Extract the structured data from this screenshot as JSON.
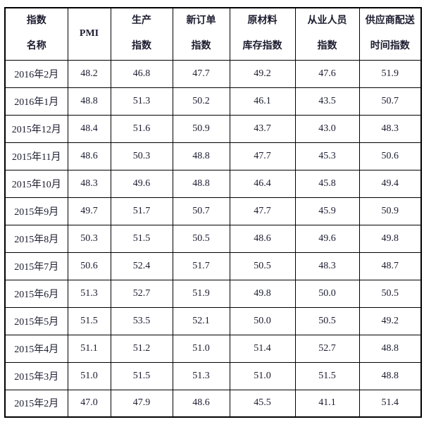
{
  "colors": {
    "background": "#ffffff",
    "border": "#000000",
    "text": "#1c1c30"
  },
  "table": {
    "columns": [
      {
        "id": "index-name",
        "label_lines": [
          "指数",
          "名称"
        ]
      },
      {
        "id": "pmi",
        "label_lines": [
          "PMI"
        ]
      },
      {
        "id": "production",
        "label_lines": [
          "生产",
          "指数"
        ]
      },
      {
        "id": "new-orders",
        "label_lines": [
          "新订单",
          "指数"
        ]
      },
      {
        "id": "raw-materials",
        "label_lines": [
          "原材料",
          "库存指数"
        ]
      },
      {
        "id": "employment",
        "label_lines": [
          "从业人员",
          "指数"
        ]
      },
      {
        "id": "supplier-delivery",
        "label_lines": [
          "供应商配送",
          "时间指数"
        ]
      }
    ],
    "rows": [
      {
        "month": "2016年2月",
        "values": [
          "48.2",
          "46.8",
          "47.7",
          "49.2",
          "47.6",
          "51.9"
        ]
      },
      {
        "month": "2016年1月",
        "values": [
          "48.8",
          "51.3",
          "50.2",
          "46.1",
          "43.5",
          "50.7"
        ]
      },
      {
        "month": "2015年12月",
        "values": [
          "48.4",
          "51.6",
          "50.9",
          "43.7",
          "43.0",
          "48.3"
        ]
      },
      {
        "month": "2015年11月",
        "values": [
          "48.6",
          "50.3",
          "48.8",
          "47.7",
          "45.3",
          "50.6"
        ]
      },
      {
        "month": "2015年10月",
        "values": [
          "48.3",
          "49.6",
          "48.8",
          "46.4",
          "45.8",
          "49.4"
        ]
      },
      {
        "month": "2015年9月",
        "values": [
          "49.7",
          "51.7",
          "50.7",
          "47.7",
          "45.9",
          "50.9"
        ]
      },
      {
        "month": "2015年8月",
        "values": [
          "50.3",
          "51.5",
          "50.5",
          "48.6",
          "49.6",
          "49.8"
        ]
      },
      {
        "month": "2015年7月",
        "values": [
          "50.6",
          "52.4",
          "51.7",
          "50.5",
          "48.3",
          "48.7"
        ]
      },
      {
        "month": "2015年6月",
        "values": [
          "51.3",
          "52.7",
          "51.9",
          "49.8",
          "50.0",
          "50.5"
        ]
      },
      {
        "month": "2015年5月",
        "values": [
          "51.5",
          "53.5",
          "52.1",
          "50.0",
          "50.5",
          "49.2"
        ]
      },
      {
        "month": "2015年4月",
        "values": [
          "51.1",
          "51.2",
          "51.0",
          "51.4",
          "52.7",
          "48.8"
        ]
      },
      {
        "month": "2015年3月",
        "values": [
          "51.0",
          "51.5",
          "51.3",
          "51.0",
          "51.5",
          "48.8"
        ]
      },
      {
        "month": "2015年2月",
        "values": [
          "47.0",
          "47.9",
          "48.6",
          "45.5",
          "41.1",
          "51.4"
        ]
      }
    ]
  }
}
